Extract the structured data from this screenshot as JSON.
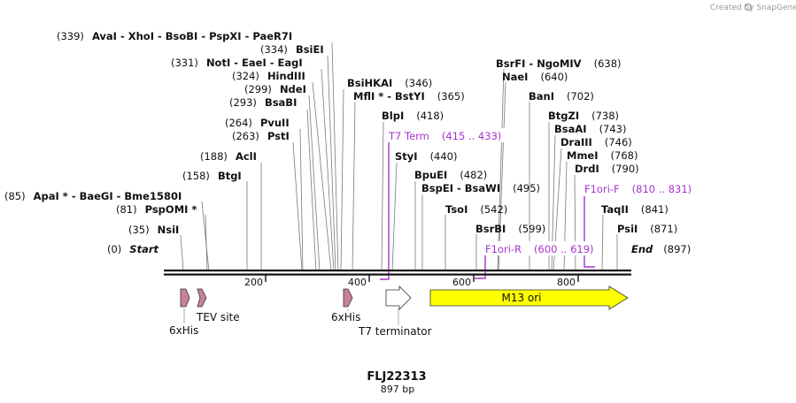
{
  "credit": "Created by SnapGene",
  "title": "FLJ22313",
  "size_label": "897 bp",
  "ends": {
    "start": "Start",
    "start_pos": "(0)",
    "end": "End",
    "end_pos": "(897)"
  },
  "ticks": [
    "200",
    "400",
    "600",
    "800"
  ],
  "sites": [
    {
      "pos": "(35)",
      "names": [
        "NsiI"
      ]
    },
    {
      "pos": "(81)",
      "names": [
        "PspOMI *"
      ]
    },
    {
      "pos": "(85)",
      "names": [
        "ApaI *",
        "BaeGI",
        "Bme1580I"
      ]
    },
    {
      "pos": "(158)",
      "names": [
        "BtgI"
      ]
    },
    {
      "pos": "(188)",
      "names": [
        "AclI"
      ]
    },
    {
      "pos": "(263)",
      "names": [
        "PstI"
      ]
    },
    {
      "pos": "(264)",
      "names": [
        "PvuII"
      ]
    },
    {
      "pos": "(293)",
      "names": [
        "BsaBI"
      ]
    },
    {
      "pos": "(299)",
      "names": [
        "NdeI"
      ]
    },
    {
      "pos": "(324)",
      "names": [
        "HindIII"
      ]
    },
    {
      "pos": "(331)",
      "names": [
        "NotI",
        "EaeI",
        "EagI"
      ]
    },
    {
      "pos": "(334)",
      "names": [
        "BsiEI"
      ]
    },
    {
      "pos": "(339)",
      "names": [
        "AvaI",
        "XhoI",
        "BsoBI",
        "PspXI",
        "PaeR7I"
      ]
    },
    {
      "pos": "(346)",
      "names": [
        "BsiHKAI"
      ]
    },
    {
      "pos": "(365)",
      "names": [
        "MflI *",
        "BstYI"
      ]
    },
    {
      "pos": "(418)",
      "names": [
        "BlpI"
      ]
    },
    {
      "pos": "(440)",
      "names": [
        "StyI"
      ]
    },
    {
      "pos": "(482)",
      "names": [
        "BpuEI"
      ]
    },
    {
      "pos": "(495)",
      "names": [
        "BspEI",
        "BsaWI"
      ]
    },
    {
      "pos": "(542)",
      "names": [
        "TsoI"
      ]
    },
    {
      "pos": "(599)",
      "names": [
        "BsrBI"
      ]
    },
    {
      "pos": "(638)",
      "names": [
        "BsrFI",
        "NgoMIV"
      ]
    },
    {
      "pos": "(640)",
      "names": [
        "NaeI"
      ]
    },
    {
      "pos": "(702)",
      "names": [
        "BanI"
      ]
    },
    {
      "pos": "(738)",
      "names": [
        "BtgZI"
      ]
    },
    {
      "pos": "(743)",
      "names": [
        "BsaAI"
      ]
    },
    {
      "pos": "(746)",
      "names": [
        "DraIII"
      ]
    },
    {
      "pos": "(768)",
      "names": [
        "MmeI"
      ]
    },
    {
      "pos": "(790)",
      "names": [
        "DrdI"
      ]
    },
    {
      "pos": "(841)",
      "names": [
        "TaqII"
      ]
    },
    {
      "pos": "(871)",
      "names": [
        "PsiI"
      ]
    }
  ],
  "primers": [
    {
      "name": "T7 Term",
      "range": "(415 .. 433)"
    },
    {
      "name": "F1ori-F",
      "range": "(810 .. 831)"
    },
    {
      "name": "F1ori-R",
      "range": "(600 .. 619)"
    }
  ],
  "features": [
    {
      "name": "6xHis"
    },
    {
      "name": "TEV site"
    },
    {
      "name": "6xHis"
    },
    {
      "name": "T7 terminator"
    },
    {
      "name": "M13 ori"
    }
  ]
}
